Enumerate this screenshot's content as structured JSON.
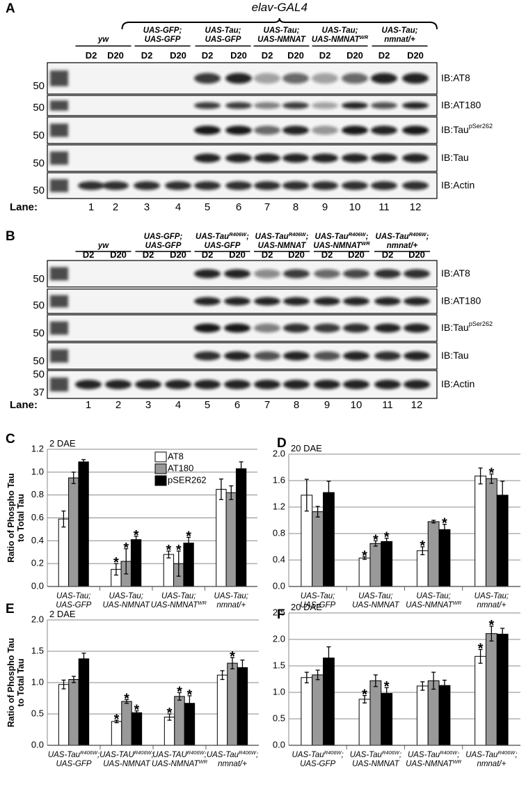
{
  "blots": [
    {
      "label": "A",
      "header": "elav-GAL4",
      "groups": [
        [
          [
            {
              "t": "yw"
            }
          ]
        ],
        [
          [
            {
              "t": "UAS-GFP;"
            }
          ],
          [
            {
              "t": "UAS-GFP"
            }
          ]
        ],
        [
          [
            {
              "t": "UAS-Tau;"
            }
          ],
          [
            {
              "t": "UAS-GFP"
            }
          ]
        ],
        [
          [
            {
              "t": "UAS-Tau;"
            }
          ],
          [
            {
              "t": "UAS-NMNAT"
            }
          ]
        ],
        [
          [
            {
              "t": "UAS-Tau;"
            }
          ],
          [
            {
              "t": "UAS-NMNAT"
            },
            {
              "sup": "WR"
            }
          ]
        ],
        [
          [
            {
              "t": "UAS-Tau;"
            }
          ],
          [
            {
              "t": "nmnat/+"
            }
          ]
        ]
      ],
      "timepoints": [
        "D2",
        "D20",
        "D2",
        "D20",
        "D2",
        "D20",
        "D2",
        "D20",
        "D2",
        "D20",
        "D2",
        "D20"
      ],
      "rows": [
        {
          "markers": [
            "50"
          ],
          "label": [
            {
              "t": "IB:AT8"
            }
          ]
        },
        {
          "markers": [
            "50"
          ],
          "label": [
            {
              "t": "IB:AT180"
            }
          ]
        },
        {
          "markers": [
            "50"
          ],
          "label": [
            {
              "t": "IB:Tau"
            },
            {
              "sup": "pSer262"
            }
          ]
        },
        {
          "markers": [
            "50"
          ],
          "label": [
            {
              "t": "IB:Tau"
            }
          ]
        },
        {
          "markers": [
            "50"
          ],
          "label": [
            {
              "t": "IB:Actin"
            }
          ]
        }
      ],
      "lane_label": "Lane:",
      "lanes": [
        1,
        2,
        3,
        4,
        5,
        6,
        7,
        8,
        9,
        10,
        11,
        12
      ]
    },
    {
      "label": "B",
      "groups": [
        [
          [
            {
              "t": "yw"
            }
          ]
        ],
        [
          [
            {
              "t": "UAS-GFP;"
            }
          ],
          [
            {
              "t": "UAS-GFP"
            }
          ]
        ],
        [
          [
            {
              "t": "UAS-Tau"
            },
            {
              "sup": "R406W"
            },
            {
              "t": ";"
            }
          ],
          [
            {
              "t": "UAS-GFP"
            }
          ]
        ],
        [
          [
            {
              "t": "UAS-Tau"
            },
            {
              "sup": "R406W"
            },
            {
              "t": ";"
            }
          ],
          [
            {
              "t": "UAS-NMNAT"
            }
          ]
        ],
        [
          [
            {
              "t": "UAS-Tau"
            },
            {
              "sup": "R406W"
            },
            {
              "t": ";"
            }
          ],
          [
            {
              "t": "UAS-NMNAT"
            },
            {
              "sup": "WR"
            }
          ]
        ],
        [
          [
            {
              "t": "UAS-Tau"
            },
            {
              "sup": "R406W"
            },
            {
              "t": ";"
            }
          ],
          [
            {
              "t": "nmnat/+"
            }
          ]
        ]
      ],
      "timepoints": [
        "D2",
        "D20",
        "D2",
        "D20",
        "D2",
        "D20",
        "D2",
        "D20",
        "D2",
        "D20",
        "D2",
        "D20"
      ],
      "rows": [
        {
          "markers": [
            "50"
          ],
          "label": [
            {
              "t": "IB:AT8"
            }
          ]
        },
        {
          "markers": [
            "50"
          ],
          "label": [
            {
              "t": "IB:AT180"
            }
          ]
        },
        {
          "markers": [
            "50"
          ],
          "label": [
            {
              "t": "IB:Tau"
            },
            {
              "sup": "pSer262"
            }
          ]
        },
        {
          "markers": [
            "50"
          ],
          "label": [
            {
              "t": "IB:Tau"
            }
          ]
        },
        {
          "markers": [
            "50",
            "37"
          ],
          "label": [
            {
              "t": "IB:Actin"
            }
          ]
        }
      ],
      "lane_label": "Lane:",
      "lanes": [
        1,
        2,
        3,
        4,
        5,
        6,
        7,
        8,
        9,
        10,
        11,
        12
      ]
    }
  ],
  "chart_data": [
    {
      "type": "bar",
      "label": "C",
      "title": "2 DAE",
      "y_label": [
        "Ratio of Phospho Tau",
        "to Total Tau"
      ],
      "legend": true,
      "categories": [
        [
          [
            {
              "t": "UAS-Tau;"
            }
          ],
          [
            {
              "t": "UAS-GFP"
            }
          ]
        ],
        [
          [
            {
              "t": "UAS-Tau;"
            }
          ],
          [
            {
              "t": "UAS-NMNAT"
            }
          ]
        ],
        [
          [
            {
              "t": "UAS-Tau;"
            }
          ],
          [
            {
              "t": "UAS-NMNAT"
            },
            {
              "sup": "WR"
            }
          ]
        ],
        [
          [
            {
              "t": "UAS-Tau;"
            }
          ],
          [
            {
              "t": "nmnat/+"
            }
          ]
        ]
      ],
      "series": [
        {
          "name": "AT8",
          "color": "#ffffff",
          "values": [
            0.59,
            0.15,
            0.28,
            0.85
          ],
          "errors": [
            0.07,
            0.05,
            0.03,
            0.09
          ],
          "significance": [
            null,
            "*",
            "*",
            null
          ]
        },
        {
          "name": "AT180",
          "color": "#999999",
          "values": [
            0.95,
            0.22,
            0.2,
            0.82
          ],
          "errors": [
            0.05,
            0.11,
            0.11,
            0.06
          ],
          "significance": [
            null,
            "*",
            "*",
            null
          ]
        },
        {
          "name": "pSER262",
          "color": "#000000",
          "values": [
            1.09,
            0.41,
            0.38,
            1.03
          ],
          "errors": [
            0.02,
            0.03,
            0.05,
            0.06
          ],
          "significance": [
            null,
            "*",
            "*",
            null
          ]
        }
      ],
      "ylim": [
        0,
        1.2
      ],
      "yticks": [
        {
          "value": 0,
          "label": "0.0"
        },
        0.2,
        0.4,
        0.6,
        0.8,
        {
          "value": 1,
          "label": "1.0"
        },
        1.2
      ],
      "grid": true
    },
    {
      "type": "bar",
      "label": "D",
      "title": "20 DAE",
      "legend": false,
      "categories": [
        [
          [
            {
              "t": "UAS-Tau;"
            }
          ],
          [
            {
              "t": "UAS-GFP"
            }
          ]
        ],
        [
          [
            {
              "t": "UAS-Tau;"
            }
          ],
          [
            {
              "t": "UAS-NMNAT"
            }
          ]
        ],
        [
          [
            {
              "t": "UAS-Tau;"
            }
          ],
          [
            {
              "t": "UAS-NMNAT"
            },
            {
              "sup": "WR"
            }
          ]
        ],
        [
          [
            {
              "t": "UAS-Tau;"
            }
          ],
          [
            {
              "t": "nmnat/+"
            }
          ]
        ]
      ],
      "series": [
        {
          "name": "AT8",
          "color": "#ffffff",
          "values": [
            1.38,
            0.43,
            0.54,
            1.67
          ],
          "errors": [
            0.24,
            0.02,
            0.06,
            0.12
          ],
          "significance": [
            null,
            "*",
            "*",
            null
          ]
        },
        {
          "name": "AT180",
          "color": "#999999",
          "values": [
            1.13,
            0.65,
            0.98,
            1.63
          ],
          "errors": [
            0.08,
            0.04,
            0.02,
            0.07
          ],
          "significance": [
            null,
            "*",
            null,
            "*"
          ]
        },
        {
          "name": "pSER262",
          "color": "#000000",
          "values": [
            1.42,
            0.68,
            0.86,
            1.38
          ],
          "errors": [
            0.17,
            0.05,
            0.08,
            0.21
          ],
          "significance": [
            null,
            "*",
            "*",
            null
          ]
        }
      ],
      "ylim": [
        0,
        2
      ],
      "yticks": [
        {
          "value": 0,
          "label": "0.0"
        },
        0.4,
        0.8,
        1.2,
        1.6,
        {
          "value": 2,
          "label": "2.0"
        }
      ],
      "grid": true
    },
    {
      "type": "bar",
      "label": "E",
      "title": "2 DAE",
      "y_label": [
        "Ratio of Phospho Tau",
        "to Total Tau"
      ],
      "legend": false,
      "categories": [
        [
          [
            {
              "t": "UAS-Tau"
            },
            {
              "sup": "R406W"
            },
            {
              "t": ";"
            }
          ],
          [
            {
              "t": "UAS-GFP"
            }
          ]
        ],
        [
          [
            {
              "t": "UAS-TAU"
            },
            {
              "sup": "R406W"
            },
            {
              "t": ";"
            }
          ],
          [
            {
              "t": "UAS-NMNAT"
            }
          ]
        ],
        [
          [
            {
              "t": "UAS-TAU"
            },
            {
              "sup": "R406W"
            },
            {
              "t": ";"
            }
          ],
          [
            {
              "t": "UAS-NMNAT"
            },
            {
              "sup": "WR"
            }
          ]
        ],
        [
          [
            {
              "t": "UAS-Tau"
            },
            {
              "sup": "R406W"
            },
            {
              "t": ";"
            }
          ],
          [
            {
              "t": "nmnat/+"
            }
          ]
        ]
      ],
      "series": [
        {
          "name": "AT8",
          "color": "#ffffff",
          "values": [
            0.97,
            0.38,
            0.45,
            1.12
          ],
          "errors": [
            0.07,
            0.02,
            0.05,
            0.07
          ],
          "significance": [
            null,
            "*",
            "*",
            null
          ]
        },
        {
          "name": "AT180",
          "color": "#999999",
          "values": [
            1.05,
            0.7,
            0.78,
            1.31
          ],
          "errors": [
            0.05,
            0.03,
            0.06,
            0.09
          ],
          "significance": [
            null,
            "*",
            "*",
            "*"
          ]
        },
        {
          "name": "pSER262",
          "color": "#000000",
          "values": [
            1.38,
            0.52,
            0.67,
            1.24
          ],
          "errors": [
            0.09,
            0.03,
            0.12,
            0.12
          ],
          "significance": [
            null,
            "*",
            "*",
            null
          ]
        }
      ],
      "ylim": [
        0,
        2
      ],
      "yticks": [
        {
          "value": 0,
          "label": "0.0"
        },
        0.5,
        {
          "value": 1,
          "label": "1.0"
        },
        1.5,
        {
          "value": 2,
          "label": "2.0"
        }
      ],
      "grid": true
    },
    {
      "type": "bar",
      "label": "F",
      "title": "20 DAE",
      "legend": false,
      "categories": [
        [
          [
            {
              "t": "UAS-Tau"
            },
            {
              "sup": "R406W"
            },
            {
              "t": ";"
            }
          ],
          [
            {
              "t": "UAS-GFP"
            }
          ]
        ],
        [
          [
            {
              "t": "UAS-Tau"
            },
            {
              "sup": "R406W"
            },
            {
              "t": ";"
            }
          ],
          [
            {
              "t": "UAS-NMNAT"
            }
          ]
        ],
        [
          [
            {
              "t": "UAS-Tau"
            },
            {
              "sup": "R406W"
            },
            {
              "t": ";"
            }
          ],
          [
            {
              "t": "UAS-NMNAT"
            },
            {
              "sup": "WR"
            }
          ]
        ],
        [
          [
            {
              "t": "UAS-Tau"
            },
            {
              "sup": "R406W"
            },
            {
              "t": ";"
            }
          ],
          [
            {
              "t": "nmnat/+"
            }
          ]
        ]
      ],
      "series": [
        {
          "name": "AT8",
          "color": "#ffffff",
          "values": [
            1.28,
            0.87,
            1.12,
            1.68
          ],
          "errors": [
            0.1,
            0.07,
            0.08,
            0.13
          ],
          "significance": [
            null,
            "*",
            null,
            "*"
          ]
        },
        {
          "name": "AT180",
          "color": "#999999",
          "values": [
            1.33,
            1.22,
            1.22,
            2.11
          ],
          "errors": [
            0.09,
            0.11,
            0.16,
            0.14
          ],
          "significance": [
            null,
            null,
            null,
            "*"
          ]
        },
        {
          "name": "pSER262",
          "color": "#000000",
          "values": [
            1.65,
            0.98,
            1.13,
            2.1
          ],
          "errors": [
            0.21,
            0.11,
            0.1,
            0.11
          ],
          "significance": [
            null,
            "*",
            null,
            null
          ]
        }
      ],
      "ylim": [
        0,
        2.5
      ],
      "yticks": [
        {
          "value": 0,
          "label": "0.0"
        },
        0.5,
        {
          "value": 1,
          "label": "1.0"
        },
        1.5,
        {
          "value": 2,
          "label": "2.0"
        },
        2.5
      ],
      "grid": true
    }
  ]
}
